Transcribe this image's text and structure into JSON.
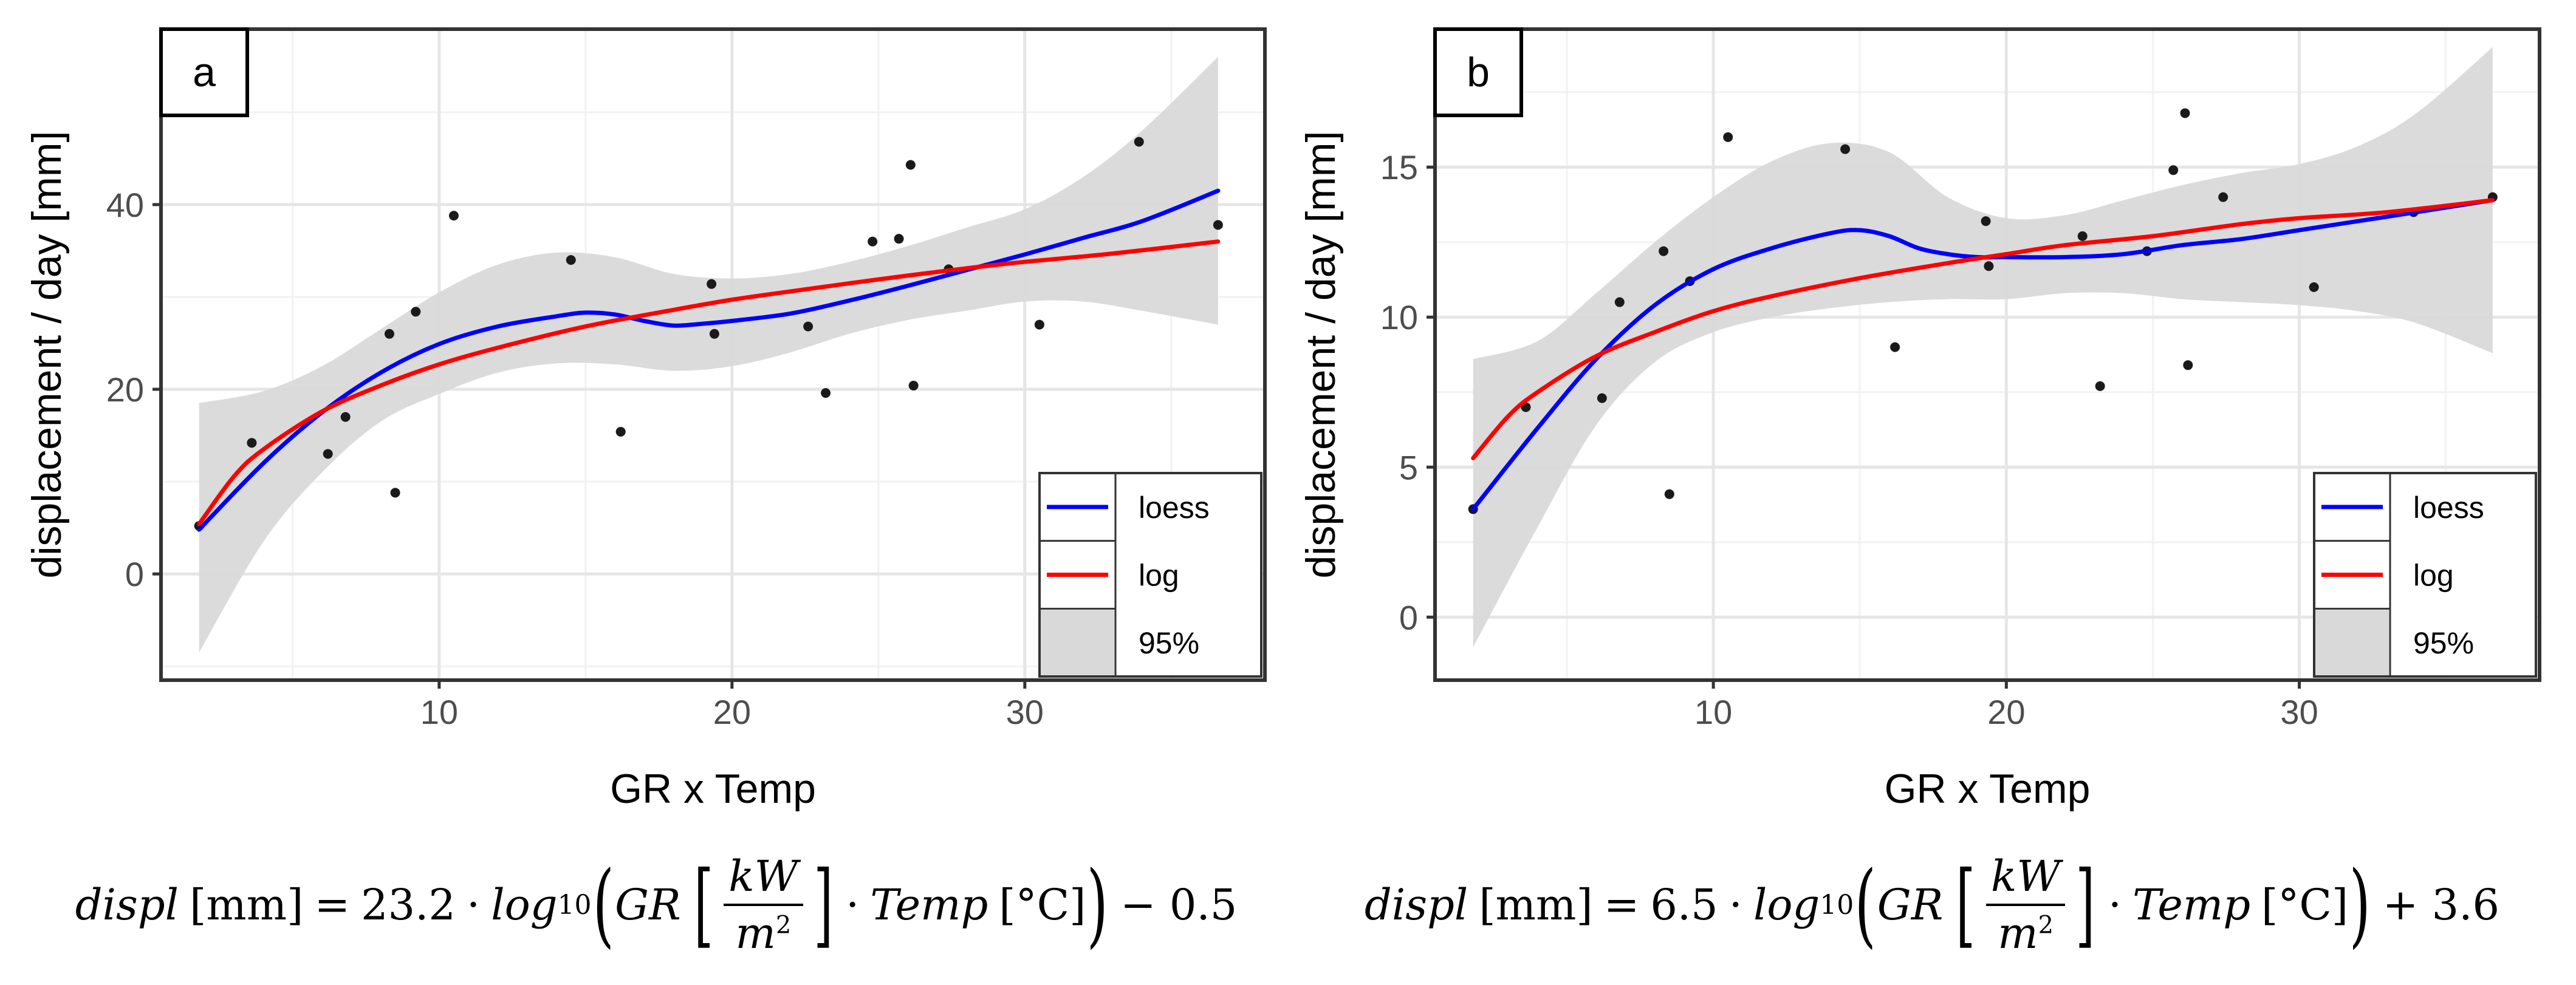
{
  "chart_data": [
    {
      "panel": "a",
      "type": "scatter",
      "xlabel": "GR x Temp",
      "ylabel": "displacement / day [mm]",
      "xlim": [
        0.5,
        38.2
      ],
      "ylim": [
        -11.5,
        59
      ],
      "xticks": [
        10,
        20,
        30
      ],
      "yticks": [
        0,
        20,
        40
      ],
      "points": [
        [
          1.8,
          5.2
        ],
        [
          3.6,
          14.2
        ],
        [
          6.2,
          13.0
        ],
        [
          6.8,
          17.0
        ],
        [
          8.3,
          26.0
        ],
        [
          8.5,
          8.8
        ],
        [
          9.2,
          28.4
        ],
        [
          10.5,
          38.8
        ],
        [
          14.5,
          34.0
        ],
        [
          16.2,
          15.4
        ],
        [
          19.3,
          31.4
        ],
        [
          19.4,
          26.0
        ],
        [
          22.6,
          26.8
        ],
        [
          23.2,
          19.6
        ],
        [
          24.8,
          36.0
        ],
        [
          25.7,
          36.3
        ],
        [
          26.1,
          44.3
        ],
        [
          26.2,
          20.4
        ],
        [
          27.4,
          33.0
        ],
        [
          30.5,
          27.0
        ],
        [
          33.9,
          46.8
        ],
        [
          36.6,
          37.8
        ]
      ],
      "series": [
        {
          "name": "loess",
          "color": "#0000ff",
          "x": [
            1.8,
            4,
            6,
            8,
            10,
            12,
            14,
            15,
            16,
            17,
            18,
            19,
            20,
            22,
            24,
            26,
            28,
            30,
            32,
            34,
            36.6
          ],
          "y": [
            4.8,
            12.0,
            17.5,
            21.8,
            24.9,
            26.8,
            27.9,
            28.3,
            28.1,
            27.4,
            26.9,
            27.1,
            27.4,
            28.2,
            29.6,
            31.2,
            32.9,
            34.6,
            36.4,
            38.2,
            41.5
          ]
        },
        {
          "name": "log",
          "color": "#ff0000",
          "x": [
            1.8,
            3,
            4,
            6,
            8,
            10,
            12,
            15,
            18,
            20,
            22,
            25,
            28,
            30,
            33,
            36.6
          ],
          "y": [
            5.4,
            10.6,
            13.5,
            17.6,
            20.4,
            22.7,
            24.5,
            26.8,
            28.6,
            29.7,
            30.6,
            31.9,
            33.1,
            33.8,
            34.7,
            36.0
          ]
        }
      ],
      "ci_band": {
        "x": [
          1.8,
          4,
          6,
          8,
          10,
          12,
          14,
          16,
          18,
          20,
          22,
          24,
          26,
          28,
          30,
          32,
          34,
          36.6
        ],
        "upper": [
          18.5,
          19.8,
          22.5,
          26.5,
          30.5,
          33.5,
          34.8,
          34.3,
          32.5,
          32.0,
          32.5,
          33.8,
          35.5,
          37.5,
          39.5,
          43.0,
          48.0,
          56.0
        ],
        "lower": [
          -8.5,
          3.5,
          11.0,
          16.5,
          19.5,
          21.8,
          22.8,
          22.7,
          22.0,
          22.5,
          24.0,
          26.0,
          27.5,
          28.5,
          29.5,
          29.5,
          28.5,
          27.0
        ]
      },
      "legend": [
        {
          "label": "loess",
          "kind": "line",
          "color": "#0000ff"
        },
        {
          "label": "log",
          "kind": "line",
          "color": "#ff0000"
        },
        {
          "label": "95%",
          "kind": "band",
          "color": "#d9d9d9"
        }
      ],
      "legend_position": "bottom-right",
      "equation": {
        "lhs": "displ",
        "unit": "[mm]",
        "coef": "23.2",
        "log": "log",
        "log_base": "10",
        "gr": "GR",
        "gr_unit_num": "kW",
        "gr_unit_den": "m",
        "gr_unit_den_exp": "2",
        "temp": "Temp",
        "temp_unit": "[°C]",
        "op_const": "− 0.5"
      }
    },
    {
      "panel": "b",
      "type": "scatter",
      "xlabel": "GR x Temp",
      "ylabel": "displacement / day [mm]",
      "xlim": [
        0.5,
        38.2
      ],
      "ylim": [
        -2.1,
        19.6
      ],
      "xticks": [
        10,
        20,
        30
      ],
      "yticks": [
        0,
        5,
        10,
        15
      ],
      "points": [
        [
          1.8,
          3.6
        ],
        [
          3.6,
          7.0
        ],
        [
          6.2,
          7.3
        ],
        [
          6.8,
          10.5
        ],
        [
          8.3,
          12.2
        ],
        [
          8.5,
          4.1
        ],
        [
          9.2,
          11.2
        ],
        [
          10.5,
          16.0
        ],
        [
          14.5,
          15.6
        ],
        [
          16.2,
          9.0
        ],
        [
          19.3,
          13.2
        ],
        [
          19.4,
          11.7
        ],
        [
          22.6,
          12.7
        ],
        [
          23.2,
          7.7
        ],
        [
          24.8,
          12.2
        ],
        [
          25.7,
          14.9
        ],
        [
          26.1,
          16.8
        ],
        [
          26.2,
          8.4
        ],
        [
          27.4,
          14.0
        ],
        [
          30.5,
          11.0
        ],
        [
          33.9,
          13.5
        ],
        [
          36.6,
          14.0
        ]
      ],
      "series": [
        {
          "name": "loess",
          "color": "#0000ff",
          "x": [
            1.8,
            4,
            6,
            8,
            10,
            12,
            14,
            15,
            16,
            17,
            18,
            19,
            20,
            22,
            24,
            26,
            28,
            30,
            32,
            34,
            36.6
          ],
          "y": [
            3.6,
            6.3,
            8.6,
            10.4,
            11.6,
            12.3,
            12.8,
            12.9,
            12.7,
            12.3,
            12.1,
            12.0,
            12.0,
            12.0,
            12.1,
            12.4,
            12.6,
            12.9,
            13.2,
            13.5,
            13.9
          ]
        },
        {
          "name": "log",
          "color": "#ff0000",
          "x": [
            1.8,
            3,
            4,
            6,
            8,
            10,
            12,
            15,
            18,
            20,
            22,
            25,
            28,
            30,
            33,
            36.6
          ],
          "y": [
            5.3,
            6.7,
            7.5,
            8.7,
            9.5,
            10.2,
            10.7,
            11.3,
            11.8,
            12.1,
            12.4,
            12.7,
            13.1,
            13.3,
            13.5,
            13.9
          ]
        }
      ],
      "ci_band": {
        "x": [
          1.8,
          4,
          6,
          8,
          10,
          12,
          14,
          16,
          18,
          20,
          22,
          24,
          26,
          28,
          30,
          32,
          34,
          36.6
        ],
        "upper": [
          8.6,
          9.2,
          10.8,
          12.5,
          14.0,
          15.2,
          15.8,
          15.5,
          14.0,
          13.3,
          13.4,
          13.9,
          14.4,
          14.8,
          15.1,
          15.7,
          16.8,
          19.0
        ],
        "lower": [
          -1.0,
          3.0,
          6.4,
          8.5,
          9.5,
          10.0,
          10.3,
          10.5,
          10.6,
          10.6,
          10.8,
          10.8,
          10.6,
          10.5,
          10.4,
          10.2,
          9.8,
          8.8
        ]
      },
      "legend": [
        {
          "label": "loess",
          "kind": "line",
          "color": "#0000ff"
        },
        {
          "label": "log",
          "kind": "line",
          "color": "#ff0000"
        },
        {
          "label": "95%",
          "kind": "band",
          "color": "#d9d9d9"
        }
      ],
      "legend_position": "bottom-right",
      "equation": {
        "lhs": "displ",
        "unit": "[mm]",
        "coef": "6.5",
        "log": "log",
        "log_base": "10",
        "gr": "GR",
        "gr_unit_num": "kW",
        "gr_unit_den": "m",
        "gr_unit_den_exp": "2",
        "temp": "Temp",
        "temp_unit": "[°C]",
        "op_const": "+ 3.6"
      }
    }
  ]
}
